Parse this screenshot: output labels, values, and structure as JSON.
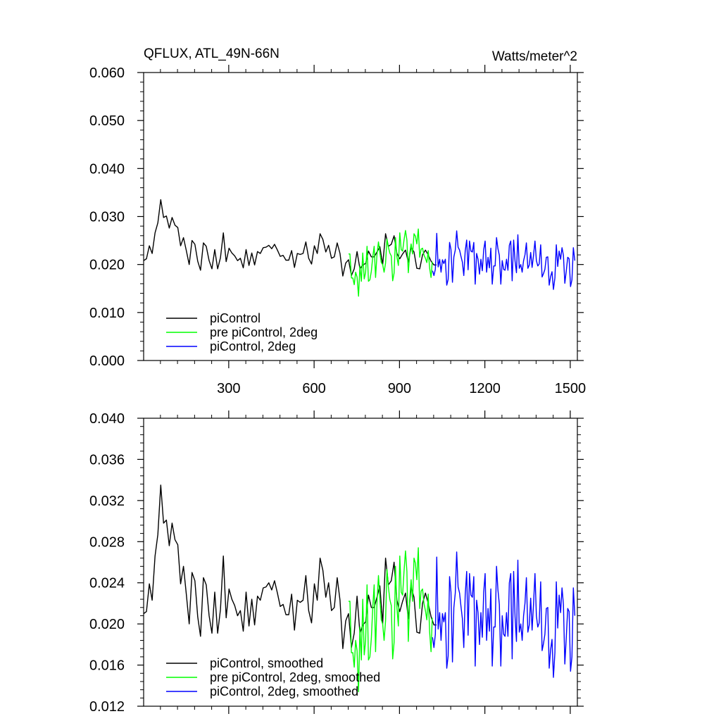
{
  "chart_data": [
    {
      "type": "line",
      "title": "QFLUX, ATL_49N-66N",
      "units": "Watts/meter^2",
      "xlim": [
        1,
        1525
      ],
      "ylim": [
        0.0,
        0.06
      ],
      "x_ticks": [
        300,
        600,
        900,
        1200,
        1500
      ],
      "x_tick_labels": [
        "300",
        "600",
        "900",
        "1200",
        "1500"
      ],
      "y_ticks": [
        0.0,
        0.01,
        0.02,
        0.03,
        0.04,
        0.05,
        0.06
      ],
      "y_tick_labels": [
        "0.000",
        "0.010",
        "0.020",
        "0.030",
        "0.040",
        "0.050",
        "0.060"
      ],
      "legend_position": "bottom-left",
      "series": [
        {
          "name": "piControl",
          "color": "#000000",
          "x_range": [
            1,
            1030
          ],
          "sample_step": 10,
          "values": [
            0.0208,
            0.0212,
            0.0239,
            0.0223,
            0.0266,
            0.0287,
            0.0335,
            0.0298,
            0.0301,
            0.0276,
            0.0298,
            0.0282,
            0.0277,
            0.0239,
            0.0256,
            0.0229,
            0.02,
            0.025,
            0.0242,
            0.0207,
            0.0188,
            0.0245,
            0.0238,
            0.0208,
            0.0191,
            0.0231,
            0.0191,
            0.0214,
            0.0266,
            0.0206,
            0.0234,
            0.0224,
            0.0218,
            0.0208,
            0.0213,
            0.0193,
            0.0231,
            0.0198,
            0.0224,
            0.0199,
            0.0227,
            0.0223,
            0.0235,
            0.0236,
            0.024,
            0.0233,
            0.0242,
            0.023,
            0.0217,
            0.0219,
            0.0209,
            0.0209,
            0.0229,
            0.0194,
            0.0223,
            0.0221,
            0.0223,
            0.0247,
            0.0213,
            0.0201,
            0.0239,
            0.0223,
            0.0264,
            0.0252,
            0.0226,
            0.024,
            0.0213,
            0.0216,
            0.0245,
            0.0223,
            0.0176,
            0.0203,
            0.021,
            0.0177,
            0.0191,
            0.0227,
            0.0191,
            0.0199,
            0.0202,
            0.0228,
            0.0216,
            0.0216,
            0.0226,
            0.0237,
            0.02,
            0.0264,
            0.0238,
            0.0242,
            0.026,
            0.0223,
            0.0212,
            0.0222,
            0.023,
            0.0205,
            0.0236,
            0.0226,
            0.0192,
            0.0191,
            0.022,
            0.023,
            0.022,
            0.0207,
            0.0199,
            0.0199
          ]
        },
        {
          "name": "pre piControl, 2deg",
          "color": "#00ff00",
          "x_range": [
            721,
            1015
          ],
          "sample_step": 5,
          "values": [
            0.0222,
            0.0222,
            0.0172,
            0.0172,
            0.0158,
            0.0184,
            0.0174,
            0.0134,
            0.0197,
            0.0165,
            0.0224,
            0.017,
            0.0184,
            0.0238,
            0.0165,
            0.0168,
            0.0186,
            0.0216,
            0.0238,
            0.0173,
            0.0221,
            0.0247,
            0.0225,
            0.0204,
            0.02,
            0.0184,
            0.0203,
            0.0253,
            0.0236,
            0.0224,
            0.0218,
            0.0166,
            0.0182,
            0.0256,
            0.0216,
            0.0198,
            0.0266,
            0.0231,
            0.0228,
            0.0251,
            0.0271,
            0.0251,
            0.0183,
            0.0223,
            0.0243,
            0.0222,
            0.0264,
            0.0259,
            0.0243,
            0.0274,
            0.0215,
            0.0232,
            0.0234,
            0.022,
            0.0213,
            0.0204,
            0.0229,
            0.0192,
            0.0173,
            0.0206
          ]
        },
        {
          "name": "piControl, 2deg",
          "color": "#0000ff",
          "x_range": [
            1016,
            1520
          ],
          "sample_step": 5,
          "values": [
            0.0187,
            0.0177,
            0.019,
            0.0265,
            0.0195,
            0.0211,
            0.0184,
            0.021,
            0.0202,
            0.0211,
            0.0157,
            0.0169,
            0.0246,
            0.0231,
            0.0163,
            0.0216,
            0.023,
            0.027,
            0.0236,
            0.023,
            0.0217,
            0.0205,
            0.0177,
            0.0228,
            0.0251,
            0.0189,
            0.0249,
            0.0228,
            0.0226,
            0.0246,
            0.0159,
            0.0223,
            0.0211,
            0.018,
            0.0211,
            0.0187,
            0.0231,
            0.0249,
            0.0184,
            0.0215,
            0.0193,
            0.0234,
            0.0159,
            0.0197,
            0.0197,
            0.0256,
            0.0233,
            0.0219,
            0.0159,
            0.0208,
            0.019,
            0.0188,
            0.0211,
            0.0188,
            0.024,
            0.0249,
            0.0166,
            0.0251,
            0.0207,
            0.0183,
            0.0262,
            0.0192,
            0.02,
            0.0184,
            0.0208,
            0.022,
            0.0245,
            0.0192,
            0.0199,
            0.0225,
            0.0194,
            0.022,
            0.0249,
            0.0208,
            0.0197,
            0.0201,
            0.0241,
            0.0174,
            0.0181,
            0.019,
            0.0215,
            0.0216,
            0.0157,
            0.0175,
            0.0185,
            0.0148,
            0.0172,
            0.0241,
            0.0196,
            0.0228,
            0.0211,
            0.0235,
            0.0219,
            0.0161,
            0.0186,
            0.0215,
            0.0212,
            0.0154,
            0.0168,
            0.0235,
            0.0208
          ]
        }
      ]
    },
    {
      "type": "line",
      "xlim": [
        1,
        1525
      ],
      "ylim": [
        0.012,
        0.04
      ],
      "x_ticks": [
        300,
        600,
        900,
        1200,
        1500
      ],
      "y_ticks": [
        0.012,
        0.016,
        0.02,
        0.024,
        0.028,
        0.032,
        0.036,
        0.04
      ],
      "y_tick_labels": [
        "0.012",
        "0.016",
        "0.020",
        "0.024",
        "0.028",
        "0.032",
        "0.036",
        "0.040"
      ],
      "legend_position": "bottom-left",
      "series": [
        {
          "name": "piControl, smoothed",
          "color": "#000000",
          "x_range": [
            1,
            1030
          ],
          "sample_step": 10,
          "values": [
            0.021,
            0.0212,
            0.0239,
            0.0223,
            0.0266,
            0.0287,
            0.0335,
            0.0298,
            0.0301,
            0.0276,
            0.0298,
            0.0282,
            0.0277,
            0.0239,
            0.0256,
            0.0229,
            0.02,
            0.025,
            0.0242,
            0.0207,
            0.0188,
            0.0245,
            0.0238,
            0.0208,
            0.0191,
            0.0231,
            0.0191,
            0.0214,
            0.0266,
            0.0206,
            0.0234,
            0.0224,
            0.0218,
            0.0208,
            0.0213,
            0.0193,
            0.0231,
            0.0198,
            0.0224,
            0.0199,
            0.0227,
            0.0223,
            0.0235,
            0.0236,
            0.024,
            0.0233,
            0.0242,
            0.023,
            0.0217,
            0.0219,
            0.0209,
            0.0209,
            0.0229,
            0.0194,
            0.0223,
            0.0221,
            0.0223,
            0.0247,
            0.0213,
            0.0201,
            0.0239,
            0.0223,
            0.0264,
            0.0252,
            0.0226,
            0.024,
            0.0213,
            0.0216,
            0.0245,
            0.0223,
            0.0176,
            0.0203,
            0.021,
            0.0177,
            0.0191,
            0.0227,
            0.0191,
            0.0199,
            0.0202,
            0.0228,
            0.0216,
            0.0216,
            0.0226,
            0.0237,
            0.02,
            0.0264,
            0.0238,
            0.0242,
            0.026,
            0.0223,
            0.0212,
            0.0222,
            0.023,
            0.0205,
            0.0236,
            0.0226,
            0.0192,
            0.0191,
            0.022,
            0.023,
            0.022,
            0.0207,
            0.0199,
            0.0199
          ]
        },
        {
          "name": "pre piControl, 2deg, smoothed",
          "color": "#00ff00",
          "x_range": [
            721,
            1015
          ],
          "sample_step": 5,
          "values": [
            0.0222,
            0.0222,
            0.0172,
            0.0172,
            0.0158,
            0.0184,
            0.0174,
            0.0134,
            0.0197,
            0.0165,
            0.0224,
            0.017,
            0.0184,
            0.0238,
            0.0165,
            0.0168,
            0.0186,
            0.0216,
            0.0238,
            0.0173,
            0.0221,
            0.0247,
            0.0225,
            0.0204,
            0.02,
            0.0184,
            0.0203,
            0.0253,
            0.0236,
            0.0224,
            0.0218,
            0.0166,
            0.0182,
            0.0256,
            0.0216,
            0.0198,
            0.0266,
            0.0231,
            0.0228,
            0.0251,
            0.0271,
            0.0251,
            0.0183,
            0.0223,
            0.0243,
            0.0222,
            0.0264,
            0.0259,
            0.0243,
            0.0274,
            0.0215,
            0.0232,
            0.0234,
            0.022,
            0.0213,
            0.0204,
            0.0229,
            0.0192,
            0.0173,
            0.0206
          ]
        },
        {
          "name": "piControl, 2deg, smoothed",
          "color": "#0000ff",
          "x_range": [
            1016,
            1520
          ],
          "sample_step": 5,
          "values": [
            0.0187,
            0.0177,
            0.019,
            0.0265,
            0.0195,
            0.0211,
            0.0184,
            0.021,
            0.0202,
            0.0211,
            0.0157,
            0.0169,
            0.0246,
            0.0231,
            0.0163,
            0.0216,
            0.023,
            0.027,
            0.0236,
            0.023,
            0.0217,
            0.0205,
            0.0177,
            0.0228,
            0.0251,
            0.0189,
            0.0249,
            0.0228,
            0.0226,
            0.0246,
            0.0159,
            0.0223,
            0.0211,
            0.018,
            0.0211,
            0.0187,
            0.0231,
            0.0249,
            0.0184,
            0.0215,
            0.0193,
            0.0234,
            0.0159,
            0.0197,
            0.0197,
            0.0256,
            0.0233,
            0.0219,
            0.0159,
            0.0208,
            0.019,
            0.0188,
            0.0211,
            0.0188,
            0.024,
            0.0249,
            0.0166,
            0.0251,
            0.0207,
            0.0183,
            0.0262,
            0.0192,
            0.02,
            0.0184,
            0.0208,
            0.022,
            0.0245,
            0.0192,
            0.0199,
            0.0225,
            0.0194,
            0.022,
            0.0249,
            0.0208,
            0.0197,
            0.0201,
            0.0241,
            0.0174,
            0.0181,
            0.019,
            0.0215,
            0.0216,
            0.0157,
            0.0175,
            0.0185,
            0.0148,
            0.0172,
            0.0241,
            0.0196,
            0.0228,
            0.0211,
            0.0235,
            0.0219,
            0.0161,
            0.0186,
            0.0215,
            0.0212,
            0.0154,
            0.0168,
            0.0235,
            0.0208
          ]
        }
      ]
    }
  ]
}
